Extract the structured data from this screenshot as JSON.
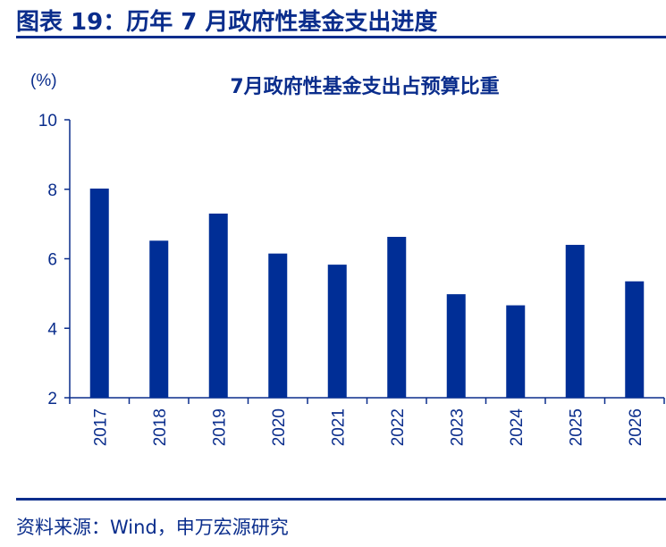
{
  "figure": {
    "title": "图表 19：历年 7 月政府性基金支出进度",
    "source": "资料来源：Wind，申万宏源研究"
  },
  "colors": {
    "accent": "#0a2d8c",
    "bar": "#002e96"
  },
  "chart_data": {
    "type": "bar",
    "title": "7月政府性基金支出占预算比重",
    "ylabel": "(%)",
    "xlabel": "",
    "categories": [
      "2017",
      "2018",
      "2019",
      "2020",
      "2021",
      "2022",
      "2023",
      "2024",
      "2025",
      "2026"
    ],
    "values": [
      8.02,
      6.52,
      7.3,
      6.15,
      5.83,
      6.63,
      4.98,
      4.66,
      6.4,
      5.35
    ],
    "ylim": [
      2,
      10
    ],
    "yticks": [
      "2",
      "4",
      "6",
      "8",
      "10"
    ],
    "grid": false,
    "legend": "none"
  }
}
